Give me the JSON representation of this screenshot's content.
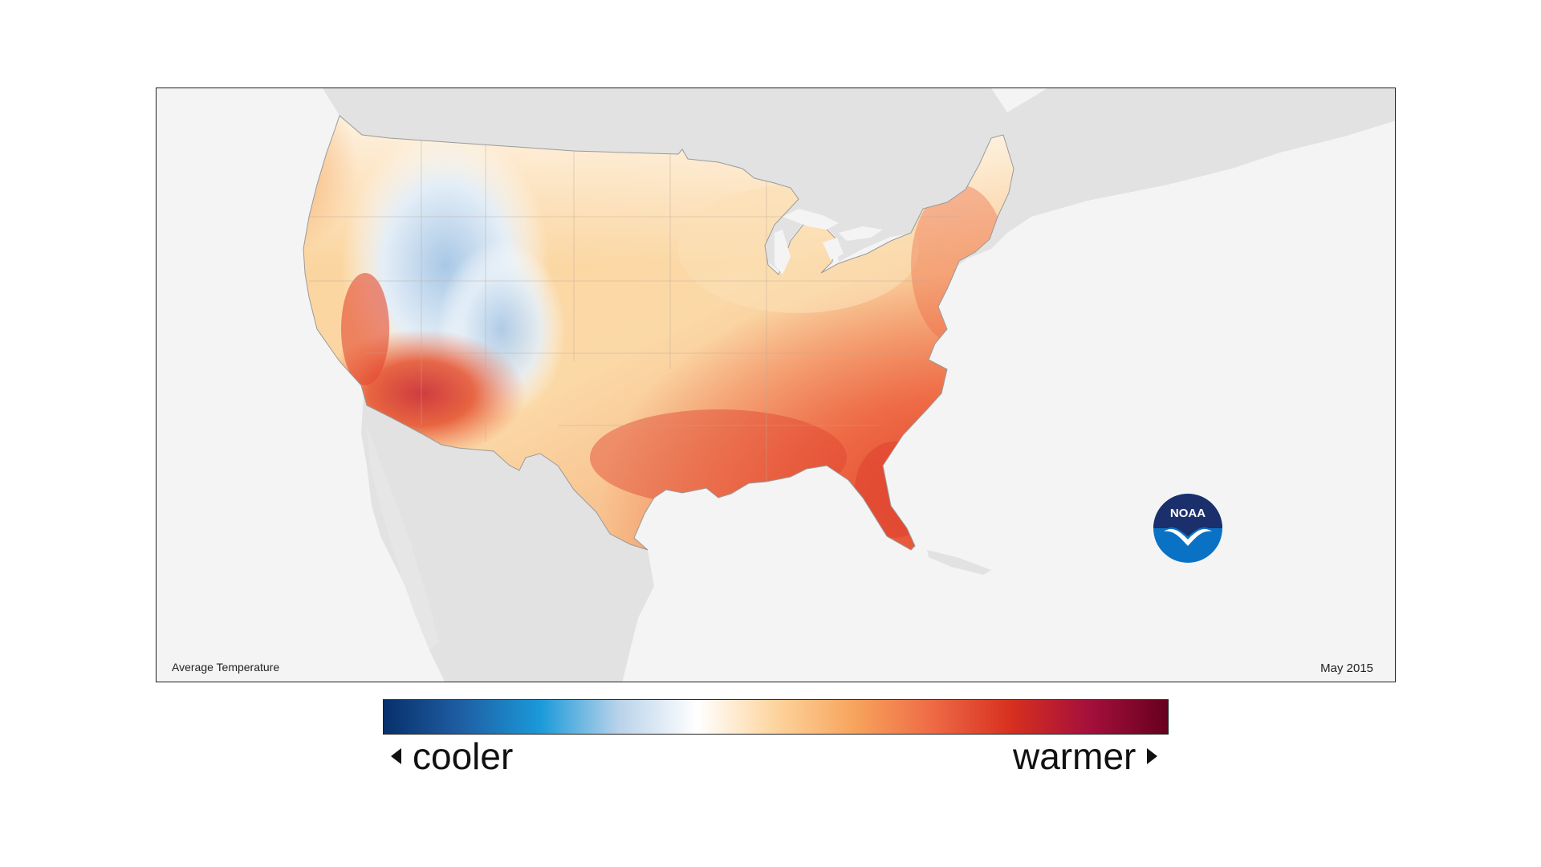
{
  "map": {
    "title": "Average Temperature",
    "date": "May 2015",
    "logo_text": "NOAA"
  },
  "legend": {
    "cooler_label": "cooler",
    "warmer_label": "warmer",
    "colors": [
      "#08306b",
      "#1f5fa4",
      "#1a9ad9",
      "#b9d3ea",
      "#ffffff",
      "#fdd49e",
      "#f7a45c",
      "#ee6a45",
      "#d7301f",
      "#a50f3c",
      "#67001f"
    ]
  },
  "colors": {
    "land_outside": "#e2e2e2",
    "background": "#f4f4f4",
    "border": "#222222",
    "noaa_blue": "#0a72c4",
    "noaa_navy": "#1a2f6b"
  },
  "icons": [
    "noaa-logo-icon",
    "left-triangle-icon",
    "right-triangle-icon"
  ]
}
